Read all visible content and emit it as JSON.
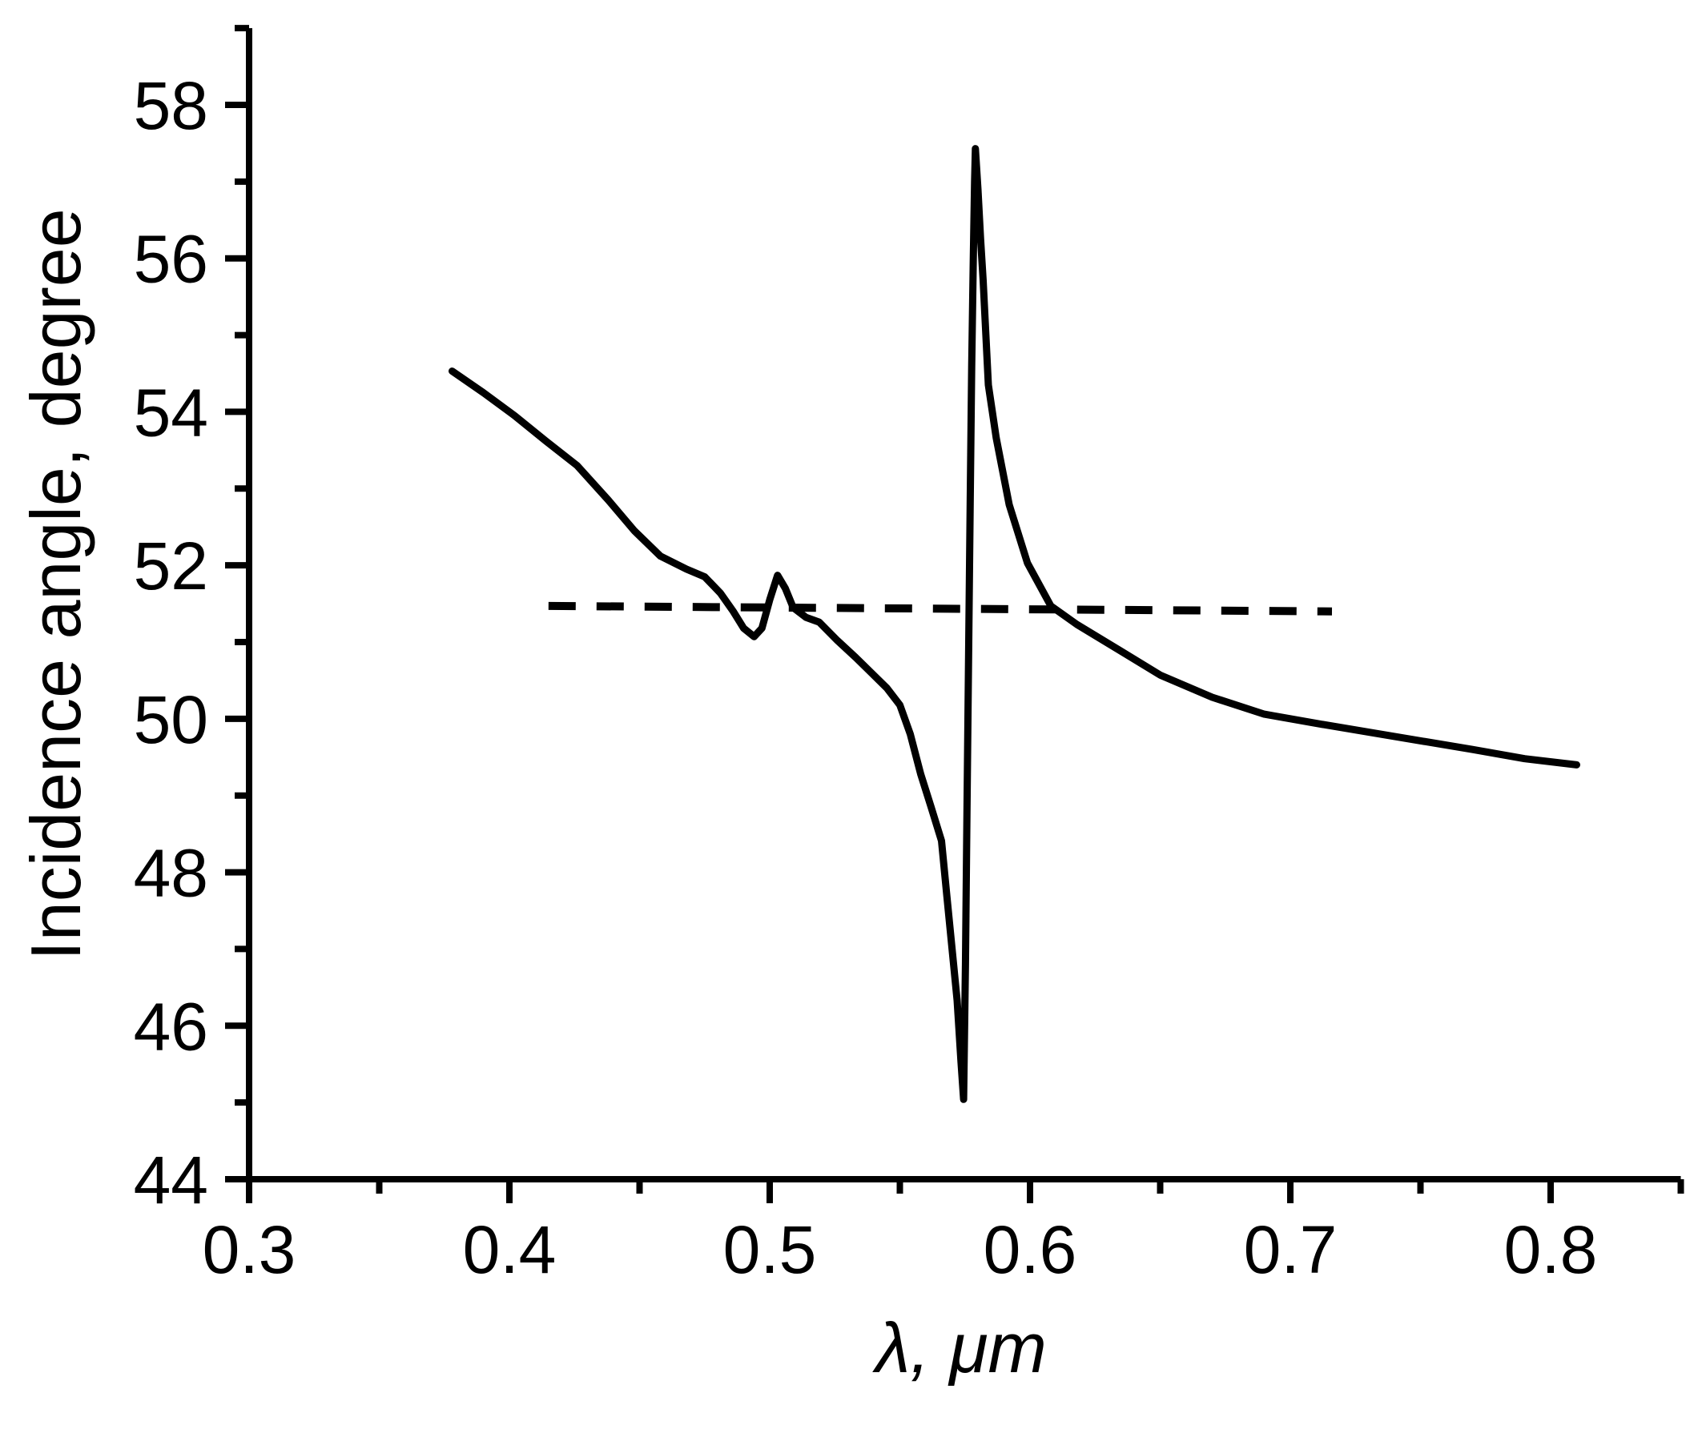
{
  "figure": {
    "background": "#ffffff",
    "stroke_color": "#000000"
  },
  "chart_data": {
    "type": "line",
    "title": "",
    "xlabel": "λ, μm",
    "ylabel": "Incidence angle, degree",
    "xlim": [
      0.3,
      0.85
    ],
    "ylim": [
      44,
      59
    ],
    "grid": false,
    "legend": "none",
    "x_major_ticks": [
      0.3,
      0.4,
      0.5,
      0.6,
      0.7,
      0.8
    ],
    "x_major_tick_labels": [
      "0.3",
      "0.4",
      "0.5",
      "0.6",
      "0.7",
      "0.8"
    ],
    "x_minor_ticks": [
      0.35,
      0.45,
      0.55,
      0.65,
      0.75,
      0.85
    ],
    "y_major_ticks": [
      44,
      46,
      48,
      50,
      52,
      54,
      56,
      58
    ],
    "y_major_tick_labels": [
      "44",
      "46",
      "48",
      "50",
      "52",
      "54",
      "56",
      "58"
    ],
    "y_minor_ticks": [
      45,
      47,
      49,
      51,
      53,
      55,
      57,
      59
    ],
    "series": [
      {
        "name": "incidence-angle-curve",
        "style": "solid",
        "line_width": 9,
        "color": "#000000",
        "points": [
          [
            0.378,
            54.53
          ],
          [
            0.39,
            54.25
          ],
          [
            0.402,
            53.95
          ],
          [
            0.414,
            53.62
          ],
          [
            0.426,
            53.3
          ],
          [
            0.438,
            52.85
          ],
          [
            0.448,
            52.45
          ],
          [
            0.458,
            52.12
          ],
          [
            0.468,
            51.95
          ],
          [
            0.475,
            51.85
          ],
          [
            0.481,
            51.64
          ],
          [
            0.486,
            51.4
          ],
          [
            0.49,
            51.18
          ],
          [
            0.494,
            51.07
          ],
          [
            0.497,
            51.18
          ],
          [
            0.5,
            51.55
          ],
          [
            0.503,
            51.87
          ],
          [
            0.506,
            51.7
          ],
          [
            0.509,
            51.45
          ],
          [
            0.514,
            51.32
          ],
          [
            0.519,
            51.26
          ],
          [
            0.526,
            51.02
          ],
          [
            0.533,
            50.8
          ],
          [
            0.539,
            50.6
          ],
          [
            0.545,
            50.4
          ],
          [
            0.55,
            50.18
          ],
          [
            0.554,
            49.8
          ],
          [
            0.558,
            49.28
          ],
          [
            0.562,
            48.85
          ],
          [
            0.566,
            48.41
          ],
          [
            0.568,
            47.71
          ],
          [
            0.57,
            47.02
          ],
          [
            0.572,
            46.33
          ],
          [
            0.5735,
            45.52
          ],
          [
            0.5745,
            45.04
          ],
          [
            0.5752,
            46.8
          ],
          [
            0.5758,
            48.8
          ],
          [
            0.5764,
            50.8
          ],
          [
            0.577,
            52.8
          ],
          [
            0.5776,
            54.6
          ],
          [
            0.5782,
            56.0
          ],
          [
            0.5787,
            57.0
          ],
          [
            0.579,
            57.43
          ],
          [
            0.58,
            56.9
          ],
          [
            0.581,
            56.25
          ],
          [
            0.582,
            55.71
          ],
          [
            0.584,
            54.35
          ],
          [
            0.587,
            53.66
          ],
          [
            0.592,
            52.79
          ],
          [
            0.599,
            52.03
          ],
          [
            0.608,
            51.47
          ],
          [
            0.618,
            51.23
          ],
          [
            0.635,
            50.88
          ],
          [
            0.65,
            50.57
          ],
          [
            0.67,
            50.28
          ],
          [
            0.69,
            50.06
          ],
          [
            0.71,
            49.94
          ],
          [
            0.74,
            49.77
          ],
          [
            0.77,
            49.6
          ],
          [
            0.79,
            49.48
          ],
          [
            0.81,
            49.4
          ]
        ]
      },
      {
        "name": "reference-angle-dashed-line",
        "style": "dashed",
        "line_width": 10,
        "dash_pattern": "34 26",
        "color": "#000000",
        "points": [
          [
            0.415,
            51.47
          ],
          [
            0.716,
            51.4
          ]
        ]
      }
    ]
  }
}
